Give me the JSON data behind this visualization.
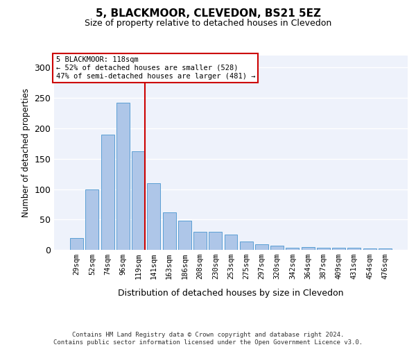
{
  "title": "5, BLACKMOOR, CLEVEDON, BS21 5EZ",
  "subtitle": "Size of property relative to detached houses in Clevedon",
  "xlabel": "Distribution of detached houses by size in Clevedon",
  "ylabel": "Number of detached properties",
  "categories": [
    "29sqm",
    "52sqm",
    "74sqm",
    "96sqm",
    "119sqm",
    "141sqm",
    "163sqm",
    "186sqm",
    "208sqm",
    "230sqm",
    "253sqm",
    "275sqm",
    "297sqm",
    "320sqm",
    "342sqm",
    "364sqm",
    "387sqm",
    "409sqm",
    "431sqm",
    "454sqm",
    "476sqm"
  ],
  "values": [
    20,
    99,
    190,
    242,
    162,
    110,
    62,
    48,
    30,
    30,
    25,
    14,
    9,
    7,
    4,
    5,
    4,
    4,
    3,
    2,
    2
  ],
  "bar_color": "#aec6e8",
  "bar_edge_color": "#5a9fd4",
  "property_index": 4,
  "property_line_color": "#cc0000",
  "annotation_line1": "5 BLACKMOOR: 118sqm",
  "annotation_line2": "← 52% of detached houses are smaller (528)",
  "annotation_line3": "47% of semi-detached houses are larger (481) →",
  "annotation_box_color": "#cc0000",
  "ylim": [
    0,
    320
  ],
  "yticks": [
    0,
    50,
    100,
    150,
    200,
    250,
    300
  ],
  "background_color": "#eef2fb",
  "footer_line1": "Contains HM Land Registry data © Crown copyright and database right 2024.",
  "footer_line2": "Contains public sector information licensed under the Open Government Licence v3.0."
}
